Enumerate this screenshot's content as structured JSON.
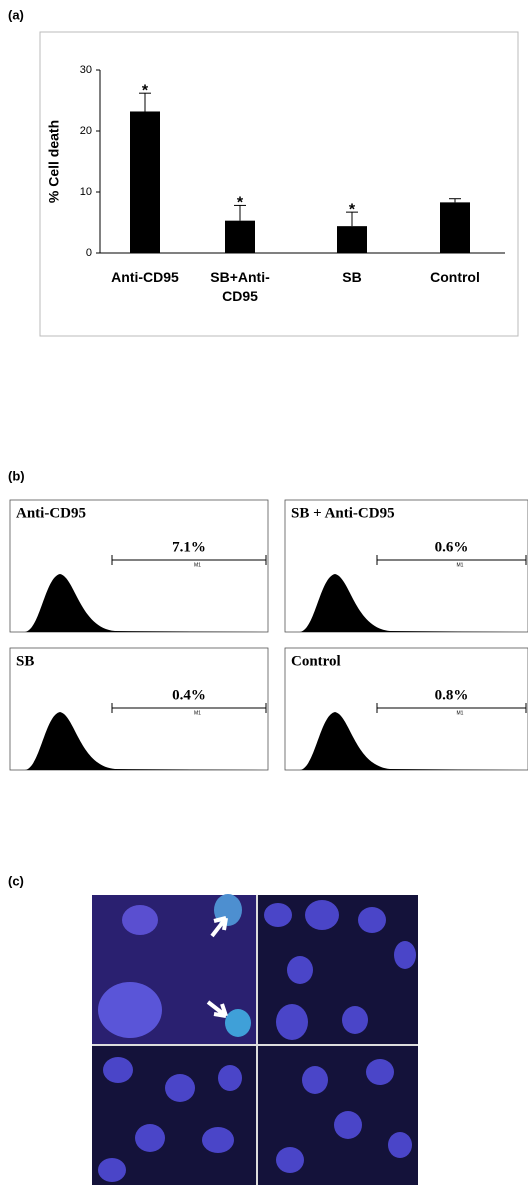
{
  "chart_data": {
    "type": "bar",
    "panel_label": "(a)",
    "y_label": "% Cell death",
    "categories": [
      "Anti-CD95",
      "SB+Anti-CD95",
      "SB",
      "Control"
    ],
    "values": [
      23.2,
      5.3,
      4.4,
      8.3
    ],
    "errors": [
      3.0,
      2.5,
      2.3,
      0.6
    ],
    "annotations": [
      "*",
      "*",
      "*",
      null
    ],
    "color": "#000000",
    "ylim": [
      0,
      30
    ],
    "yticks": [
      0,
      10,
      20,
      30
    ]
  },
  "flow_panel": {
    "panel_label": "(b)",
    "gate_label": "M1",
    "panels": [
      {
        "title": "Anti-CD95",
        "percent": "7.1%"
      },
      {
        "title": "SB + Anti-CD95",
        "percent": "0.6%"
      },
      {
        "title": "SB",
        "percent": "0.4%"
      },
      {
        "title": "Control",
        "percent": "0.8%"
      }
    ]
  },
  "image_panel": {
    "panel_label": "(c)"
  }
}
